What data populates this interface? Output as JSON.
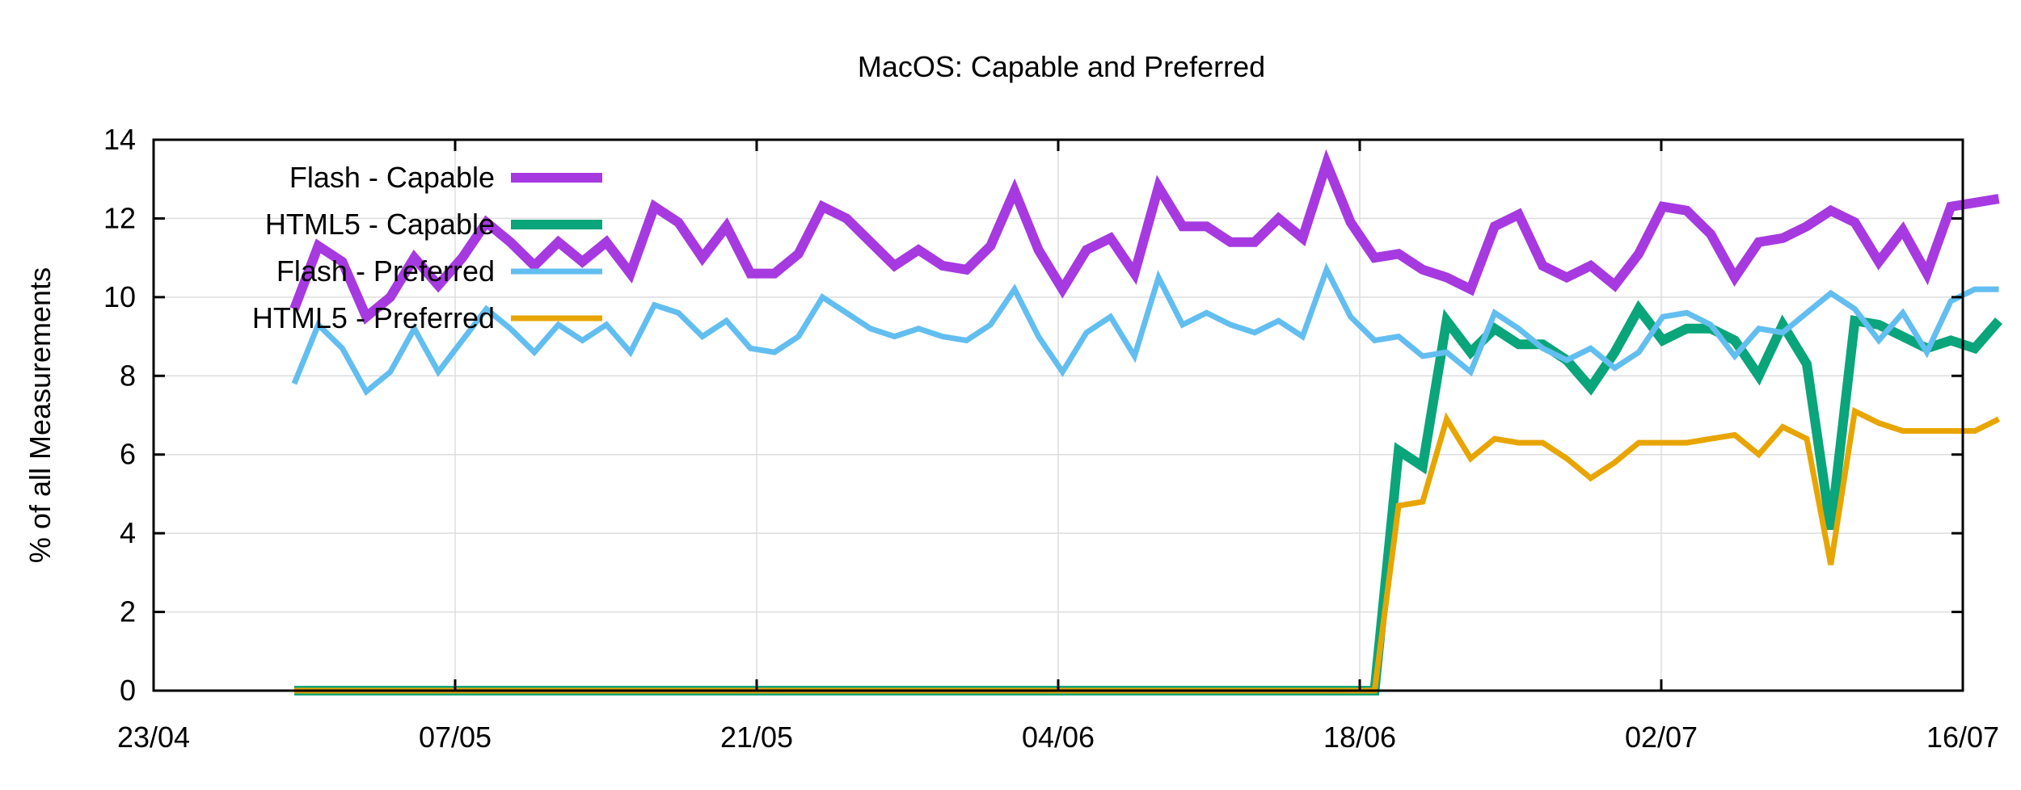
{
  "chart_data": {
    "type": "line",
    "title": "MacOS: Capable and Preferred",
    "xlabel": "",
    "ylabel": "% of all Measurements",
    "x_ticks": [
      "23/04",
      "07/05",
      "21/05",
      "04/06",
      "18/06",
      "02/07",
      "16/07"
    ],
    "y_ticks": [
      0,
      2,
      4,
      6,
      8,
      10,
      12,
      14
    ],
    "xlim": [
      "23/04",
      "16/07"
    ],
    "ylim": [
      0,
      14
    ],
    "grid": true,
    "legend_position": "top-left",
    "series": [
      {
        "name": "Flash - Capable",
        "color": "#a63ae0",
        "values": [
          [
            1,
            9.7
          ],
          [
            2,
            11.3
          ],
          [
            3,
            10.9
          ],
          [
            4,
            9.5
          ],
          [
            5,
            10.0
          ],
          [
            6,
            11.0
          ],
          [
            7,
            10.3
          ],
          [
            8,
            11.0
          ],
          [
            9,
            11.9
          ],
          [
            10,
            11.4
          ],
          [
            11,
            10.8
          ],
          [
            12,
            11.4
          ],
          [
            13,
            10.9
          ],
          [
            14,
            11.4
          ],
          [
            15,
            10.6
          ],
          [
            16,
            12.3
          ],
          [
            17,
            11.9
          ],
          [
            18,
            11.0
          ],
          [
            19,
            11.8
          ],
          [
            20,
            10.6
          ],
          [
            21,
            10.6
          ],
          [
            22,
            11.1
          ],
          [
            23,
            12.3
          ],
          [
            24,
            12.0
          ],
          [
            25,
            11.4
          ],
          [
            26,
            10.8
          ],
          [
            27,
            11.2
          ],
          [
            28,
            10.8
          ],
          [
            29,
            10.7
          ],
          [
            30,
            11.3
          ],
          [
            31,
            12.7
          ],
          [
            32,
            11.2
          ],
          [
            33,
            10.2
          ],
          [
            34,
            11.2
          ],
          [
            35,
            11.5
          ],
          [
            36,
            10.6
          ],
          [
            37,
            12.8
          ],
          [
            38,
            11.8
          ],
          [
            39,
            11.8
          ],
          [
            40,
            11.4
          ],
          [
            41,
            11.4
          ],
          [
            42,
            12.0
          ],
          [
            43,
            11.5
          ],
          [
            44,
            13.4
          ],
          [
            45,
            11.9
          ],
          [
            46,
            11.0
          ],
          [
            47,
            11.1
          ],
          [
            48,
            10.7
          ],
          [
            49,
            10.5
          ],
          [
            50,
            10.2
          ],
          [
            51,
            11.8
          ],
          [
            52,
            12.1
          ],
          [
            53,
            10.8
          ],
          [
            54,
            10.5
          ],
          [
            55,
            10.8
          ],
          [
            56,
            10.3
          ],
          [
            57,
            11.1
          ],
          [
            58,
            12.3
          ],
          [
            59,
            12.2
          ],
          [
            60,
            11.6
          ],
          [
            61,
            10.5
          ],
          [
            62,
            11.4
          ],
          [
            63,
            11.5
          ],
          [
            64,
            11.8
          ],
          [
            65,
            12.2
          ],
          [
            66,
            11.9
          ],
          [
            67,
            10.9
          ],
          [
            68,
            11.7
          ],
          [
            69,
            10.6
          ],
          [
            70,
            12.3
          ],
          [
            71,
            12.4
          ],
          [
            72,
            12.5
          ]
        ]
      },
      {
        "name": "HTML5 - Capable",
        "color": "#0aa57a",
        "values": [
          [
            1,
            0
          ],
          [
            2,
            0
          ],
          [
            3,
            0
          ],
          [
            4,
            0
          ],
          [
            5,
            0
          ],
          [
            6,
            0
          ],
          [
            7,
            0
          ],
          [
            8,
            0
          ],
          [
            9,
            0
          ],
          [
            10,
            0
          ],
          [
            11,
            0
          ],
          [
            12,
            0
          ],
          [
            13,
            0
          ],
          [
            14,
            0
          ],
          [
            15,
            0
          ],
          [
            16,
            0
          ],
          [
            17,
            0
          ],
          [
            18,
            0
          ],
          [
            19,
            0
          ],
          [
            20,
            0
          ],
          [
            21,
            0
          ],
          [
            22,
            0
          ],
          [
            23,
            0
          ],
          [
            24,
            0
          ],
          [
            25,
            0
          ],
          [
            26,
            0
          ],
          [
            27,
            0
          ],
          [
            28,
            0
          ],
          [
            29,
            0
          ],
          [
            30,
            0
          ],
          [
            31,
            0
          ],
          [
            32,
            0
          ],
          [
            33,
            0
          ],
          [
            34,
            0
          ],
          [
            35,
            0
          ],
          [
            36,
            0
          ],
          [
            37,
            0
          ],
          [
            38,
            0
          ],
          [
            39,
            0
          ],
          [
            40,
            0
          ],
          [
            41,
            0
          ],
          [
            42,
            0
          ],
          [
            43,
            0
          ],
          [
            44,
            0
          ],
          [
            45,
            0
          ],
          [
            46,
            0
          ],
          [
            47,
            6.1
          ],
          [
            48,
            5.7
          ],
          [
            49,
            9.4
          ],
          [
            50,
            8.6
          ],
          [
            51,
            9.2
          ],
          [
            52,
            8.8
          ],
          [
            53,
            8.8
          ],
          [
            54,
            8.4
          ],
          [
            55,
            7.7
          ],
          [
            56,
            8.6
          ],
          [
            57,
            9.7
          ],
          [
            58,
            8.9
          ],
          [
            59,
            9.2
          ],
          [
            60,
            9.2
          ],
          [
            61,
            8.9
          ],
          [
            62,
            8.0
          ],
          [
            63,
            9.3
          ],
          [
            64,
            8.3
          ],
          [
            65,
            4.1
          ],
          [
            66,
            9.4
          ],
          [
            67,
            9.3
          ],
          [
            68,
            9.0
          ],
          [
            69,
            8.7
          ],
          [
            70,
            8.9
          ],
          [
            71,
            8.7
          ],
          [
            72,
            9.4
          ]
        ]
      },
      {
        "name": "Flash - Preferred",
        "color": "#62bef0",
        "values": [
          [
            1,
            7.8
          ],
          [
            2,
            9.3
          ],
          [
            3,
            8.7
          ],
          [
            4,
            7.6
          ],
          [
            5,
            8.1
          ],
          [
            6,
            9.2
          ],
          [
            7,
            8.1
          ],
          [
            8,
            8.9
          ],
          [
            9,
            9.7
          ],
          [
            10,
            9.2
          ],
          [
            11,
            8.6
          ],
          [
            12,
            9.3
          ],
          [
            13,
            8.9
          ],
          [
            14,
            9.3
          ],
          [
            15,
            8.6
          ],
          [
            16,
            9.8
          ],
          [
            17,
            9.6
          ],
          [
            18,
            9.0
          ],
          [
            19,
            9.4
          ],
          [
            20,
            8.7
          ],
          [
            21,
            8.6
          ],
          [
            22,
            9.0
          ],
          [
            23,
            10.0
          ],
          [
            24,
            9.6
          ],
          [
            25,
            9.2
          ],
          [
            26,
            9.0
          ],
          [
            27,
            9.2
          ],
          [
            28,
            9.0
          ],
          [
            29,
            8.9
          ],
          [
            30,
            9.3
          ],
          [
            31,
            10.2
          ],
          [
            32,
            9.0
          ],
          [
            33,
            8.1
          ],
          [
            34,
            9.1
          ],
          [
            35,
            9.5
          ],
          [
            36,
            8.5
          ],
          [
            37,
            10.5
          ],
          [
            38,
            9.3
          ],
          [
            39,
            9.6
          ],
          [
            40,
            9.3
          ],
          [
            41,
            9.1
          ],
          [
            42,
            9.4
          ],
          [
            43,
            9.0
          ],
          [
            44,
            10.7
          ],
          [
            45,
            9.5
          ],
          [
            46,
            8.9
          ],
          [
            47,
            9.0
          ],
          [
            48,
            8.5
          ],
          [
            49,
            8.6
          ],
          [
            50,
            8.1
          ],
          [
            51,
            9.6
          ],
          [
            52,
            9.2
          ],
          [
            53,
            8.7
          ],
          [
            54,
            8.4
          ],
          [
            55,
            8.7
          ],
          [
            56,
            8.2
          ],
          [
            57,
            8.6
          ],
          [
            58,
            9.5
          ],
          [
            59,
            9.6
          ],
          [
            60,
            9.3
          ],
          [
            61,
            8.5
          ],
          [
            62,
            9.2
          ],
          [
            63,
            9.1
          ],
          [
            64,
            9.6
          ],
          [
            65,
            10.1
          ],
          [
            66,
            9.7
          ],
          [
            67,
            8.9
          ],
          [
            68,
            9.6
          ],
          [
            69,
            8.6
          ],
          [
            70,
            9.9
          ],
          [
            71,
            10.2
          ],
          [
            72,
            10.2
          ]
        ]
      },
      {
        "name": "HTML5 - Preferred",
        "color": "#e8a500",
        "values": [
          [
            1,
            0
          ],
          [
            2,
            0
          ],
          [
            3,
            0
          ],
          [
            4,
            0
          ],
          [
            5,
            0
          ],
          [
            6,
            0
          ],
          [
            7,
            0
          ],
          [
            8,
            0
          ],
          [
            9,
            0
          ],
          [
            10,
            0
          ],
          [
            11,
            0
          ],
          [
            12,
            0
          ],
          [
            13,
            0
          ],
          [
            14,
            0
          ],
          [
            15,
            0
          ],
          [
            16,
            0
          ],
          [
            17,
            0
          ],
          [
            18,
            0
          ],
          [
            19,
            0
          ],
          [
            20,
            0
          ],
          [
            21,
            0
          ],
          [
            22,
            0
          ],
          [
            23,
            0
          ],
          [
            24,
            0
          ],
          [
            25,
            0
          ],
          [
            26,
            0
          ],
          [
            27,
            0
          ],
          [
            28,
            0
          ],
          [
            29,
            0
          ],
          [
            30,
            0
          ],
          [
            31,
            0
          ],
          [
            32,
            0
          ],
          [
            33,
            0
          ],
          [
            34,
            0
          ],
          [
            35,
            0
          ],
          [
            36,
            0
          ],
          [
            37,
            0
          ],
          [
            38,
            0
          ],
          [
            39,
            0
          ],
          [
            40,
            0
          ],
          [
            41,
            0
          ],
          [
            42,
            0
          ],
          [
            43,
            0
          ],
          [
            44,
            0
          ],
          [
            45,
            0
          ],
          [
            46,
            0
          ],
          [
            47,
            4.7
          ],
          [
            48,
            4.8
          ],
          [
            49,
            6.9
          ],
          [
            50,
            5.9
          ],
          [
            51,
            6.4
          ],
          [
            52,
            6.3
          ],
          [
            53,
            6.3
          ],
          [
            54,
            5.9
          ],
          [
            55,
            5.4
          ],
          [
            56,
            5.8
          ],
          [
            57,
            6.3
          ],
          [
            58,
            6.3
          ],
          [
            59,
            6.3
          ],
          [
            60,
            6.4
          ],
          [
            61,
            6.5
          ],
          [
            62,
            6.0
          ],
          [
            63,
            6.7
          ],
          [
            64,
            6.4
          ],
          [
            65,
            3.2
          ],
          [
            66,
            7.1
          ],
          [
            67,
            6.8
          ],
          [
            68,
            6.6
          ],
          [
            69,
            6.6
          ],
          [
            70,
            6.6
          ],
          [
            71,
            6.6
          ],
          [
            72,
            6.9
          ]
        ]
      }
    ]
  }
}
